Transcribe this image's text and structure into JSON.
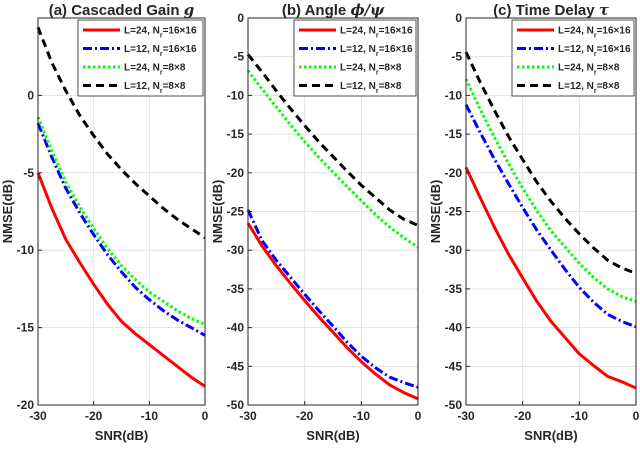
{
  "chart_data": [
    {
      "type": "line",
      "title": "(a) Cascaded Gain",
      "title_symbol": "g",
      "xlabel": "SNR(dB)",
      "ylabel": "NMSE(dB)",
      "xlim": [
        -30,
        0
      ],
      "ylim": [
        -20,
        5
      ],
      "xticks": [
        -30,
        -20,
        -10,
        0
      ],
      "yticks": [
        -20,
        -15,
        -10,
        -5,
        0
      ],
      "grid": true,
      "legend_position": "top-right",
      "x": [
        -30,
        -27.5,
        -25,
        -22.5,
        -20,
        -17.5,
        -15,
        -12.5,
        -10,
        -7.5,
        -5,
        -2.5,
        0
      ],
      "series": [
        {
          "name": "L=24, N_r=16×16",
          "values": [
            -5.0,
            -7.3,
            -9.3,
            -10.8,
            -12.2,
            -13.5,
            -14.6,
            -15.4,
            -16.1,
            -16.8,
            -17.5,
            -18.2,
            -18.8
          ]
        },
        {
          "name": "L=12, N_r=16×16",
          "values": [
            -1.8,
            -4.0,
            -6.0,
            -7.6,
            -9.0,
            -10.3,
            -11.4,
            -12.4,
            -13.2,
            -13.9,
            -14.5,
            -15.0,
            -15.5
          ]
        },
        {
          "name": "L=24, N_r=8×8",
          "values": [
            -1.4,
            -3.6,
            -5.6,
            -7.2,
            -8.6,
            -9.9,
            -11.0,
            -11.9,
            -12.7,
            -13.3,
            -13.9,
            -14.4,
            -14.8
          ]
        },
        {
          "name": "L=12, N_r=8×8",
          "values": [
            4.4,
            2.1,
            0.3,
            -1.3,
            -2.6,
            -3.8,
            -4.8,
            -5.7,
            -6.5,
            -7.3,
            -8.0,
            -8.6,
            -9.2
          ]
        }
      ]
    },
    {
      "type": "line",
      "title": "(b) Angle",
      "title_symbol": "ϕ/ψ",
      "xlabel": "SNR(dB)",
      "ylabel": "NMSE(dB)",
      "xlim": [
        -30,
        0
      ],
      "ylim": [
        -50,
        0
      ],
      "xticks": [
        -30,
        -20,
        -10,
        0
      ],
      "yticks": [
        -50,
        -45,
        -40,
        -35,
        -30,
        -25,
        -20,
        -15,
        -10,
        -5,
        0
      ],
      "grid": true,
      "legend_position": "top-right",
      "x": [
        -30,
        -27.5,
        -25,
        -22.5,
        -20,
        -17.5,
        -15,
        -12.5,
        -10,
        -7.5,
        -5,
        -2.5,
        0
      ],
      "series": [
        {
          "name": "L=24, N_r=16×16",
          "values": [
            -26.5,
            -29.5,
            -32.0,
            -34.3,
            -36.5,
            -38.6,
            -40.6,
            -42.6,
            -44.4,
            -46.0,
            -47.4,
            -48.4,
            -49.2
          ]
        },
        {
          "name": "L=12, N_r=16×16",
          "values": [
            -24.8,
            -28.8,
            -31.3,
            -33.5,
            -35.7,
            -37.8,
            -39.8,
            -41.9,
            -43.7,
            -45.2,
            -46.4,
            -47.1,
            -47.7
          ]
        },
        {
          "name": "L=24, N_r=8×8",
          "values": [
            -6.8,
            -9.2,
            -11.5,
            -13.8,
            -16.0,
            -18.0,
            -19.9,
            -21.8,
            -23.6,
            -25.4,
            -27.0,
            -28.4,
            -29.6
          ]
        },
        {
          "name": "L=12, N_r=8×8",
          "values": [
            -4.7,
            -7.0,
            -9.4,
            -11.7,
            -13.9,
            -16.0,
            -17.9,
            -19.8,
            -21.6,
            -23.2,
            -24.8,
            -26.0,
            -26.8
          ]
        }
      ]
    },
    {
      "type": "line",
      "title": "(c) Time Delay",
      "title_symbol": "τ",
      "xlabel": "SNR(dB)",
      "ylabel": "NMSE(dB)",
      "xlim": [
        -30,
        0
      ],
      "ylim": [
        -50,
        0
      ],
      "xticks": [
        -30,
        -20,
        -10,
        0
      ],
      "yticks": [
        -50,
        -45,
        -40,
        -35,
        -30,
        -25,
        -20,
        -15,
        -10,
        -5,
        0
      ],
      "grid": true,
      "legend_position": "top-right",
      "x": [
        -30,
        -27.5,
        -25,
        -22.5,
        -20,
        -17.5,
        -15,
        -12.5,
        -10,
        -7.5,
        -5,
        -2.5,
        0
      ],
      "series": [
        {
          "name": "L=24, N_r=16×16",
          "values": [
            -19.3,
            -23.2,
            -27.0,
            -30.5,
            -33.6,
            -36.6,
            -39.2,
            -41.3,
            -43.4,
            -44.9,
            -46.3,
            -47.0,
            -47.8
          ]
        },
        {
          "name": "L=12, N_r=16×16",
          "values": [
            -11.2,
            -14.8,
            -18.2,
            -21.4,
            -24.5,
            -27.4,
            -30.0,
            -32.5,
            -34.8,
            -36.7,
            -38.3,
            -39.2,
            -39.9
          ]
        },
        {
          "name": "L=24, N_r=8×8",
          "values": [
            -7.9,
            -11.8,
            -15.4,
            -18.8,
            -22.0,
            -24.9,
            -27.5,
            -29.6,
            -31.7,
            -33.5,
            -35.0,
            -36.0,
            -36.6
          ]
        },
        {
          "name": "L=12, N_r=8×8",
          "values": [
            -4.4,
            -8.3,
            -11.9,
            -15.3,
            -18.3,
            -21.2,
            -23.7,
            -25.9,
            -27.9,
            -29.7,
            -31.3,
            -32.3,
            -33.0
          ]
        }
      ]
    }
  ],
  "styles": {
    "colors": [
      "#ff0000",
      "#0000ff",
      "#00ff00",
      "#000000"
    ],
    "dash": [
      "solid",
      "dashdot",
      "dotted",
      "dashed"
    ]
  }
}
